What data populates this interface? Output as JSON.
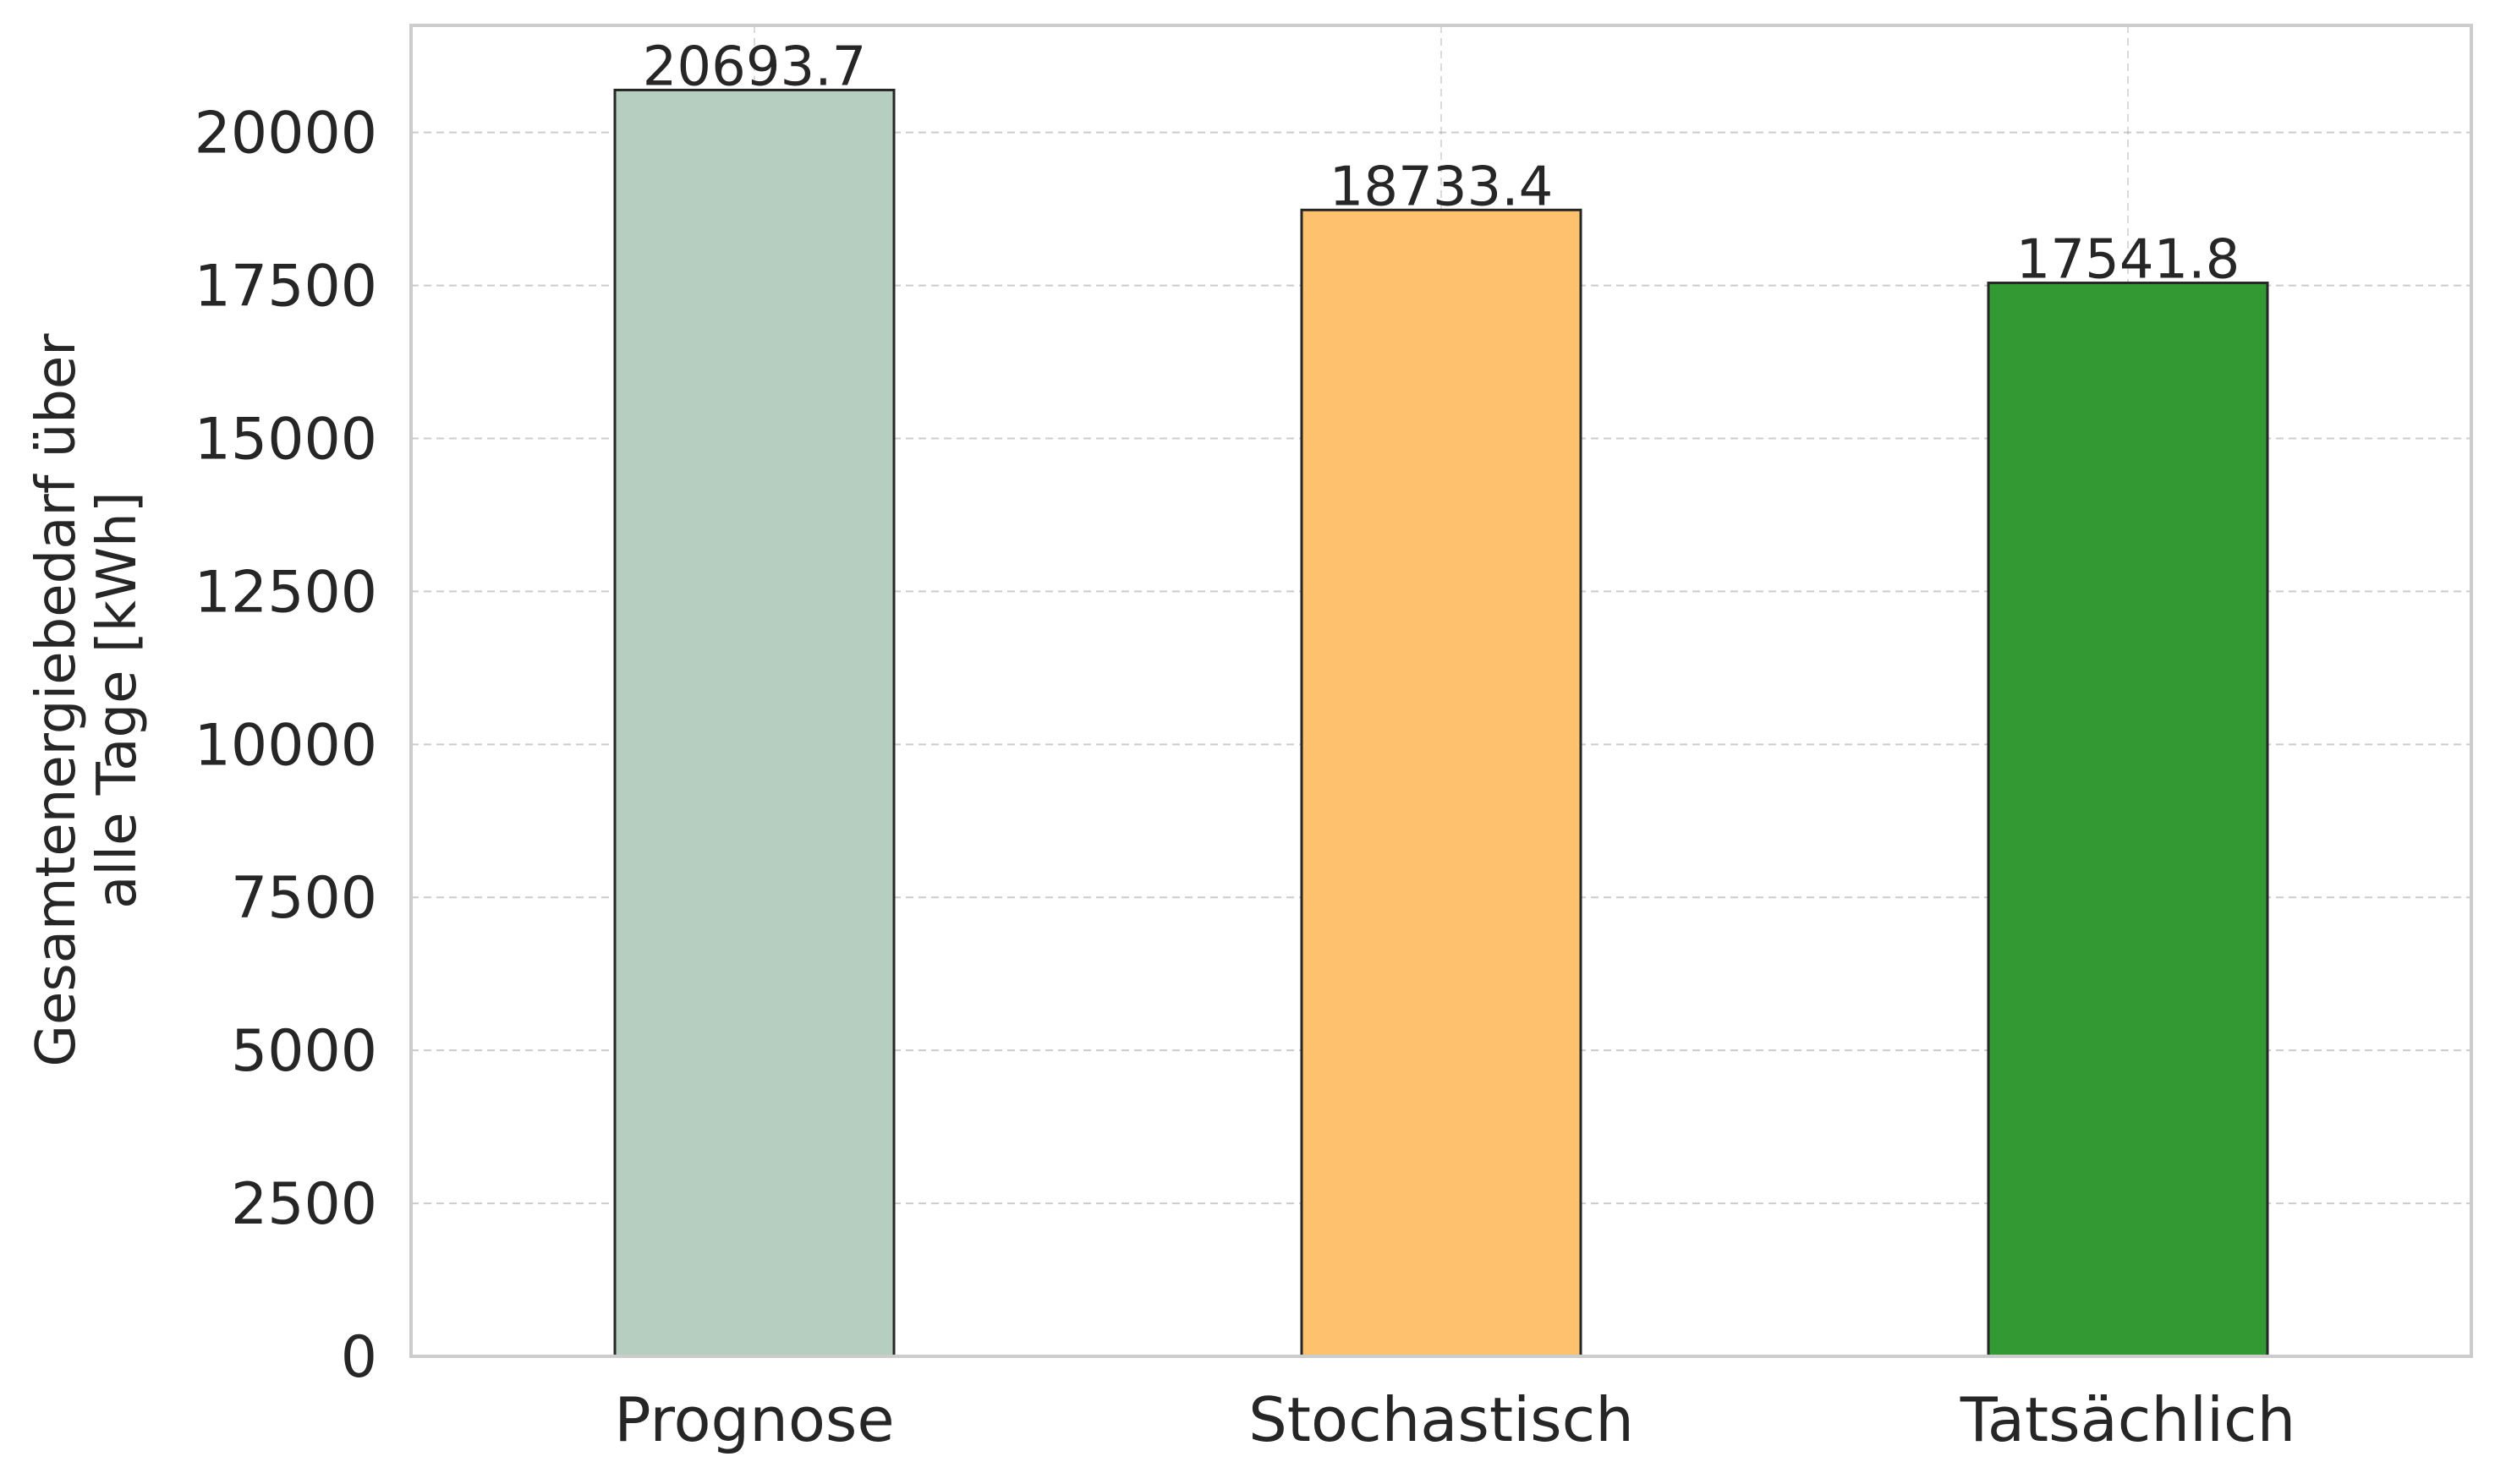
{
  "chart_data": {
    "type": "bar",
    "title": "",
    "xlabel": "",
    "ylabel_lines": [
      "Gesamtenergiebedarf über",
      "alle Tage [kWh]"
    ],
    "categories": [
      "Prognose",
      "Stochastisch",
      "Tatsächlich"
    ],
    "values": [
      20693.7,
      18733.4,
      17541.8
    ],
    "value_labels": [
      "20693.7",
      "18733.4",
      "17541.8"
    ],
    "colors": [
      "#b5cebf",
      "#fec26f",
      "#339933"
    ],
    "ylim": [
      0,
      21750
    ],
    "yticks": [
      0,
      2500,
      5000,
      7500,
      10000,
      12500,
      15000,
      17500,
      20000
    ],
    "ytick_labels": [
      "0",
      "2500",
      "5000",
      "7500",
      "10000",
      "12500",
      "15000",
      "17500",
      "20000"
    ],
    "grid": true,
    "legend": "none"
  }
}
